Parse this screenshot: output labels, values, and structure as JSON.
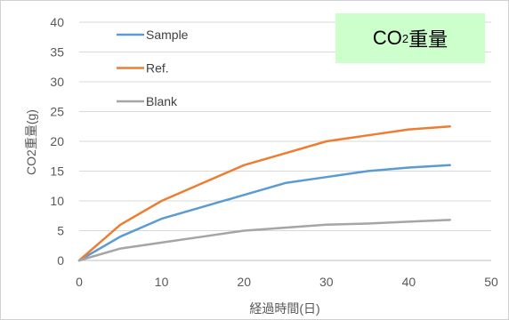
{
  "badge": {
    "main": "CO",
    "sub": "2",
    "suffix": "重量"
  },
  "chart_data": {
    "type": "line",
    "title": "",
    "xlabel": "経過時間(日)",
    "ylabel": "CO2重量(g)",
    "xlim": [
      0,
      50
    ],
    "ylim": [
      0,
      40
    ],
    "xticks": [
      0,
      10,
      20,
      30,
      40,
      50
    ],
    "yticks": [
      0,
      5,
      10,
      15,
      20,
      25,
      30,
      35,
      40
    ],
    "grid": true,
    "legend": "top-left",
    "series": [
      {
        "name": "Sample",
        "color": "#5b9bd5",
        "x": [
          0,
          5,
          10,
          15,
          20,
          25,
          30,
          35,
          40,
          45
        ],
        "y": [
          0,
          4,
          7,
          9,
          11,
          13,
          14,
          15,
          15.6,
          16
        ]
      },
      {
        "name": "Ref.",
        "color": "#ed7d31",
        "x": [
          0,
          5,
          10,
          15,
          20,
          25,
          30,
          35,
          40,
          45
        ],
        "y": [
          0,
          6,
          10,
          13,
          16,
          18,
          20,
          21,
          22,
          22.5
        ]
      },
      {
        "name": "Blank",
        "color": "#a5a5a5",
        "x": [
          0,
          5,
          10,
          15,
          20,
          25,
          30,
          35,
          40,
          45
        ],
        "y": [
          0,
          2,
          3,
          4,
          5,
          5.5,
          6,
          6.2,
          6.5,
          6.8
        ]
      }
    ]
  }
}
